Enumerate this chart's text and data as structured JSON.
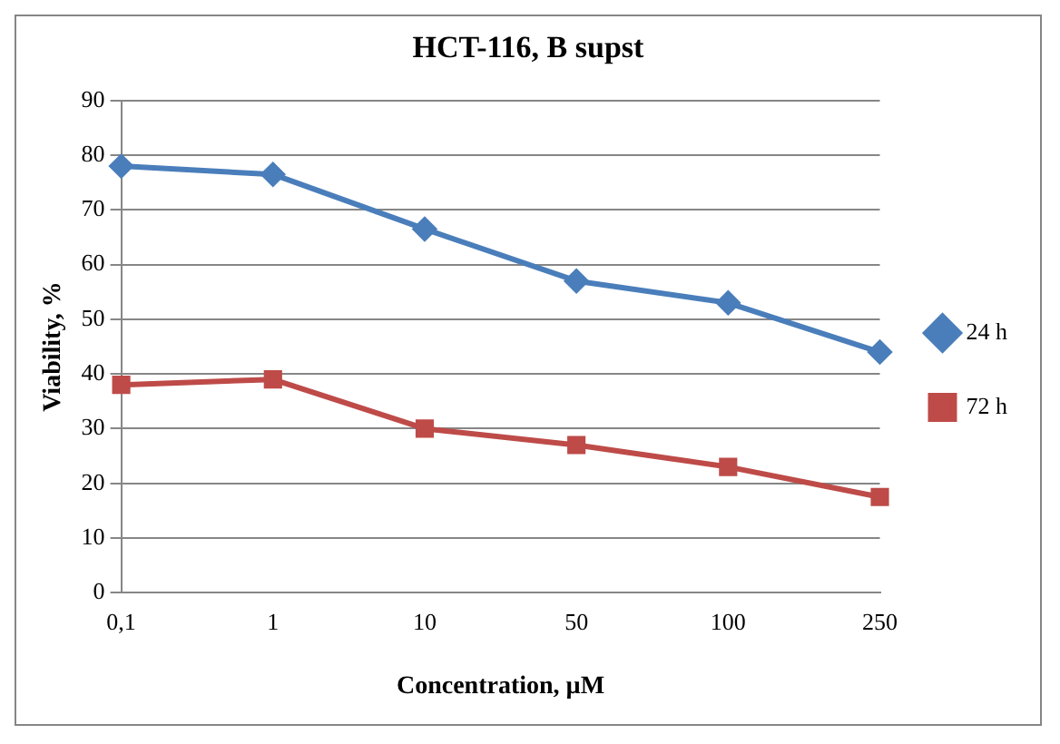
{
  "chart_data": {
    "type": "line",
    "title": "HCT-116, B supst",
    "xlabel": "Concentration, µM",
    "ylabel": "Viability, %",
    "categories": [
      "0,1",
      "1",
      "10",
      "50",
      "100",
      "250"
    ],
    "series": [
      {
        "name": "24 h",
        "color": "#4a7ebb",
        "marker": "diamond",
        "values": [
          78,
          76.5,
          66.5,
          57,
          53,
          44
        ]
      },
      {
        "name": "72 h",
        "color": "#be4b48",
        "marker": "square",
        "values": [
          38,
          39,
          30,
          27,
          23,
          17.5
        ]
      }
    ],
    "ylim": [
      0,
      90
    ],
    "yticks": [
      0,
      10,
      20,
      30,
      40,
      50,
      60,
      70,
      80,
      90
    ],
    "grid": "y",
    "legend": "right",
    "line_style": "solid"
  }
}
